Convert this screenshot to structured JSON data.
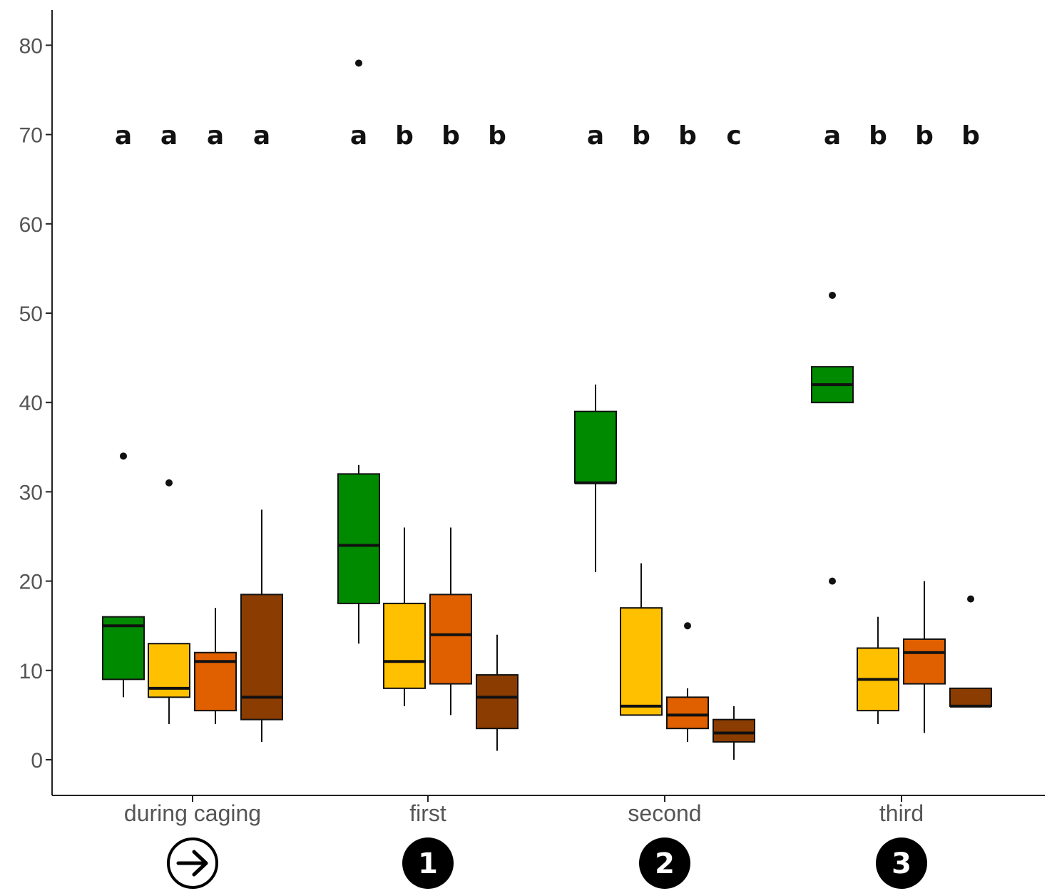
{
  "chart_data": {
    "type": "box",
    "title": "",
    "xlabel": "",
    "ylabel": "",
    "ylim": [
      -4,
      84
    ],
    "yticks": [
      0,
      10,
      20,
      30,
      40,
      50,
      60,
      70,
      80
    ],
    "grid": false,
    "legend": "none",
    "series_colors": [
      "#008a00",
      "#ffc000",
      "#e06000",
      "#8b3c00"
    ],
    "groups": [
      {
        "label": "during caging",
        "marker": {
          "type": "arrow-icon",
          "text": ""
        },
        "boxes": [
          {
            "letter": "a",
            "color": "#008a00",
            "whisker_low": 7,
            "q1": 9,
            "median": 15,
            "q3": 16,
            "whisker_high": 16,
            "outliers": [
              34
            ]
          },
          {
            "letter": "a",
            "color": "#ffc000",
            "whisker_low": 4,
            "q1": 7,
            "median": 8,
            "q3": 13,
            "whisker_high": 13,
            "outliers": [
              31
            ]
          },
          {
            "letter": "a",
            "color": "#e06000",
            "whisker_low": 4,
            "q1": 5.5,
            "median": 11,
            "q3": 12,
            "whisker_high": 17,
            "outliers": []
          },
          {
            "letter": "a",
            "color": "#8b3c00",
            "whisker_low": 2,
            "q1": 4.5,
            "median": 7,
            "q3": 18.5,
            "whisker_high": 28,
            "outliers": []
          }
        ]
      },
      {
        "label": "first",
        "marker": {
          "type": "number-badge",
          "text": "1"
        },
        "boxes": [
          {
            "letter": "a",
            "color": "#008a00",
            "whisker_low": 13,
            "q1": 17.5,
            "median": 24,
            "q3": 32,
            "whisker_high": 33,
            "outliers": [
              78
            ]
          },
          {
            "letter": "b",
            "color": "#ffc000",
            "whisker_low": 6,
            "q1": 8,
            "median": 11,
            "q3": 17.5,
            "whisker_high": 26,
            "outliers": []
          },
          {
            "letter": "b",
            "color": "#e06000",
            "whisker_low": 5,
            "q1": 8.5,
            "median": 14,
            "q3": 18.5,
            "whisker_high": 26,
            "outliers": []
          },
          {
            "letter": "b",
            "color": "#8b3c00",
            "whisker_low": 1,
            "q1": 3.5,
            "median": 7,
            "q3": 9.5,
            "whisker_high": 14,
            "outliers": []
          }
        ]
      },
      {
        "label": "second",
        "marker": {
          "type": "number-badge",
          "text": "2"
        },
        "boxes": [
          {
            "letter": "a",
            "color": "#008a00",
            "whisker_low": 21,
            "q1": 31,
            "median": 31,
            "q3": 39,
            "whisker_high": 42,
            "outliers": []
          },
          {
            "letter": "b",
            "color": "#ffc000",
            "whisker_low": 5,
            "q1": 5,
            "median": 6,
            "q3": 17,
            "whisker_high": 22,
            "outliers": []
          },
          {
            "letter": "b",
            "color": "#e06000",
            "whisker_low": 2,
            "q1": 3.5,
            "median": 5,
            "q3": 7,
            "whisker_high": 8,
            "outliers": [
              15
            ]
          },
          {
            "letter": "c",
            "color": "#8b3c00",
            "whisker_low": 0,
            "q1": 2,
            "median": 3,
            "q3": 4.5,
            "whisker_high": 6,
            "outliers": []
          }
        ]
      },
      {
        "label": "third",
        "marker": {
          "type": "number-badge",
          "text": "3"
        },
        "boxes": [
          {
            "letter": "a",
            "color": "#008a00",
            "whisker_low": 40,
            "q1": 40,
            "median": 42,
            "q3": 44,
            "whisker_high": 44,
            "outliers": [
              52,
              20
            ]
          },
          {
            "letter": "b",
            "color": "#ffc000",
            "whisker_low": 4,
            "q1": 5.5,
            "median": 9,
            "q3": 12.5,
            "whisker_high": 16,
            "outliers": []
          },
          {
            "letter": "b",
            "color": "#e06000",
            "whisker_low": 3,
            "q1": 8.5,
            "median": 12,
            "q3": 13.5,
            "whisker_high": 20,
            "outliers": []
          },
          {
            "letter": "b",
            "color": "#8b3c00",
            "whisker_low": 6,
            "q1": 6,
            "median": 6,
            "q3": 8,
            "whisker_high": 8,
            "outliers": [
              18
            ]
          }
        ]
      }
    ]
  }
}
